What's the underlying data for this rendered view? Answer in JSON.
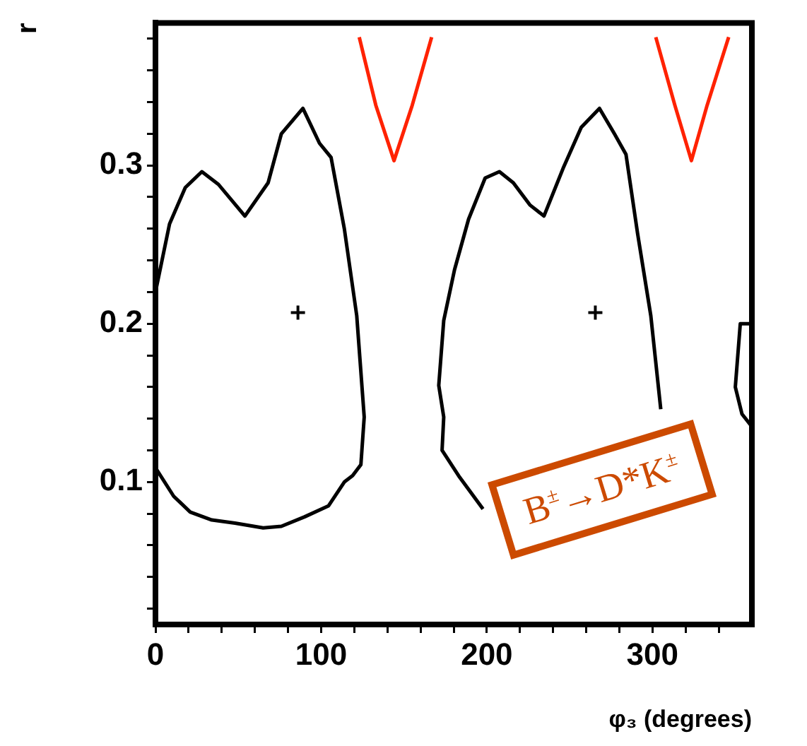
{
  "chart_data": {
    "type": "line",
    "xlabel": "φ₃ (degrees)",
    "ylabel": "r",
    "xlim": [
      0,
      360
    ],
    "ylim": [
      0.01,
      0.39
    ],
    "xticks": [
      0,
      {
        "value": 20,
        "label": null
      },
      {
        "value": 40,
        "label": null
      },
      {
        "value": 60,
        "label": null
      },
      {
        "value": 80,
        "label": null
      },
      100,
      {
        "value": 120,
        "label": null
      },
      {
        "value": 140,
        "label": null
      },
      {
        "value": 160,
        "label": null
      },
      {
        "value": 180,
        "label": null
      },
      200,
      {
        "value": 220,
        "label": null
      },
      {
        "value": 240,
        "label": null
      },
      {
        "value": 260,
        "label": null
      },
      {
        "value": 280,
        "label": null
      },
      300,
      {
        "value": 320,
        "label": null
      },
      {
        "value": 340,
        "label": null
      }
    ],
    "yticks": [
      {
        "value": 0.02,
        "label": null
      },
      {
        "value": 0.04,
        "label": null
      },
      {
        "value": 0.06,
        "label": null
      },
      {
        "value": 0.08,
        "label": null
      },
      0.1,
      {
        "value": 0.12,
        "label": null
      },
      {
        "value": 0.14,
        "label": null
      },
      {
        "value": 0.16,
        "label": null
      },
      {
        "value": 0.18,
        "label": null
      },
      0.2,
      {
        "value": 0.22,
        "label": null
      },
      {
        "value": 0.24,
        "label": null
      },
      {
        "value": 0.26,
        "label": null
      },
      {
        "value": 0.28,
        "label": null
      },
      0.3,
      {
        "value": 0.32,
        "label": null
      },
      {
        "value": 0.34,
        "label": null
      },
      {
        "value": 0.36,
        "label": null
      },
      {
        "value": 0.38,
        "label": null
      }
    ],
    "grid": false,
    "legend": false,
    "marker": "none",
    "series": [
      {
        "color": "#000000",
        "x": [
          0,
          8.5,
          18,
          28,
          38,
          54,
          68,
          76,
          89,
          99,
          106,
          114,
          121.5,
          126,
          124,
          119,
          114,
          104.5,
          90,
          76,
          65,
          48,
          34,
          21,
          11,
          0
        ],
        "values": [
          0.22,
          0.263,
          0.286,
          0.296,
          0.288,
          0.268,
          0.289,
          0.32,
          0.336,
          0.314,
          0.305,
          0.26,
          0.205,
          0.141,
          0.111,
          0.104,
          0.1,
          0.085,
          0.078,
          0.072,
          0.071,
          0.074,
          0.076,
          0.081,
          0.091,
          0.109
        ]
      },
      {
        "color": "#000000",
        "x": [
          197.7,
          183.6,
          173,
          174,
          171,
          174,
          180.5,
          189,
          199,
          207.6,
          216,
          226,
          234.5,
          246,
          257,
          268,
          277,
          284,
          291,
          299,
          305
        ],
        "values": [
          0.083,
          0.103,
          0.12,
          0.141,
          0.161,
          0.202,
          0.234,
          0.266,
          0.292,
          0.296,
          0.289,
          0.275,
          0.268,
          0.298,
          0.324,
          0.336,
          0.32,
          0.307,
          0.257,
          0.205,
          0.146
        ]
      },
      {
        "color": "#000000",
        "x": [
          360,
          353,
          350,
          354,
          360
        ],
        "values": [
          0.2,
          0.2,
          0.16,
          0.143,
          0.135
        ]
      },
      {
        "color": "#ff2200",
        "x": [
          123,
          133,
          144,
          155,
          166.7
        ],
        "values": [
          0.381,
          0.338,
          0.303,
          0.338,
          0.381
        ]
      },
      {
        "color": "#ff2200",
        "x": [
          302,
          313.5,
          323.5,
          333,
          346
        ],
        "values": [
          0.381,
          0.338,
          0.303,
          0.338,
          0.381
        ]
      },
      {
        "type": "scatter",
        "color": "#000000",
        "marker": "cross",
        "x": [
          86,
          265.5
        ],
        "values": [
          0.207,
          0.207
        ]
      }
    ],
    "annotations": [
      "B$^{±}$→D*K$^{±}$"
    ]
  }
}
